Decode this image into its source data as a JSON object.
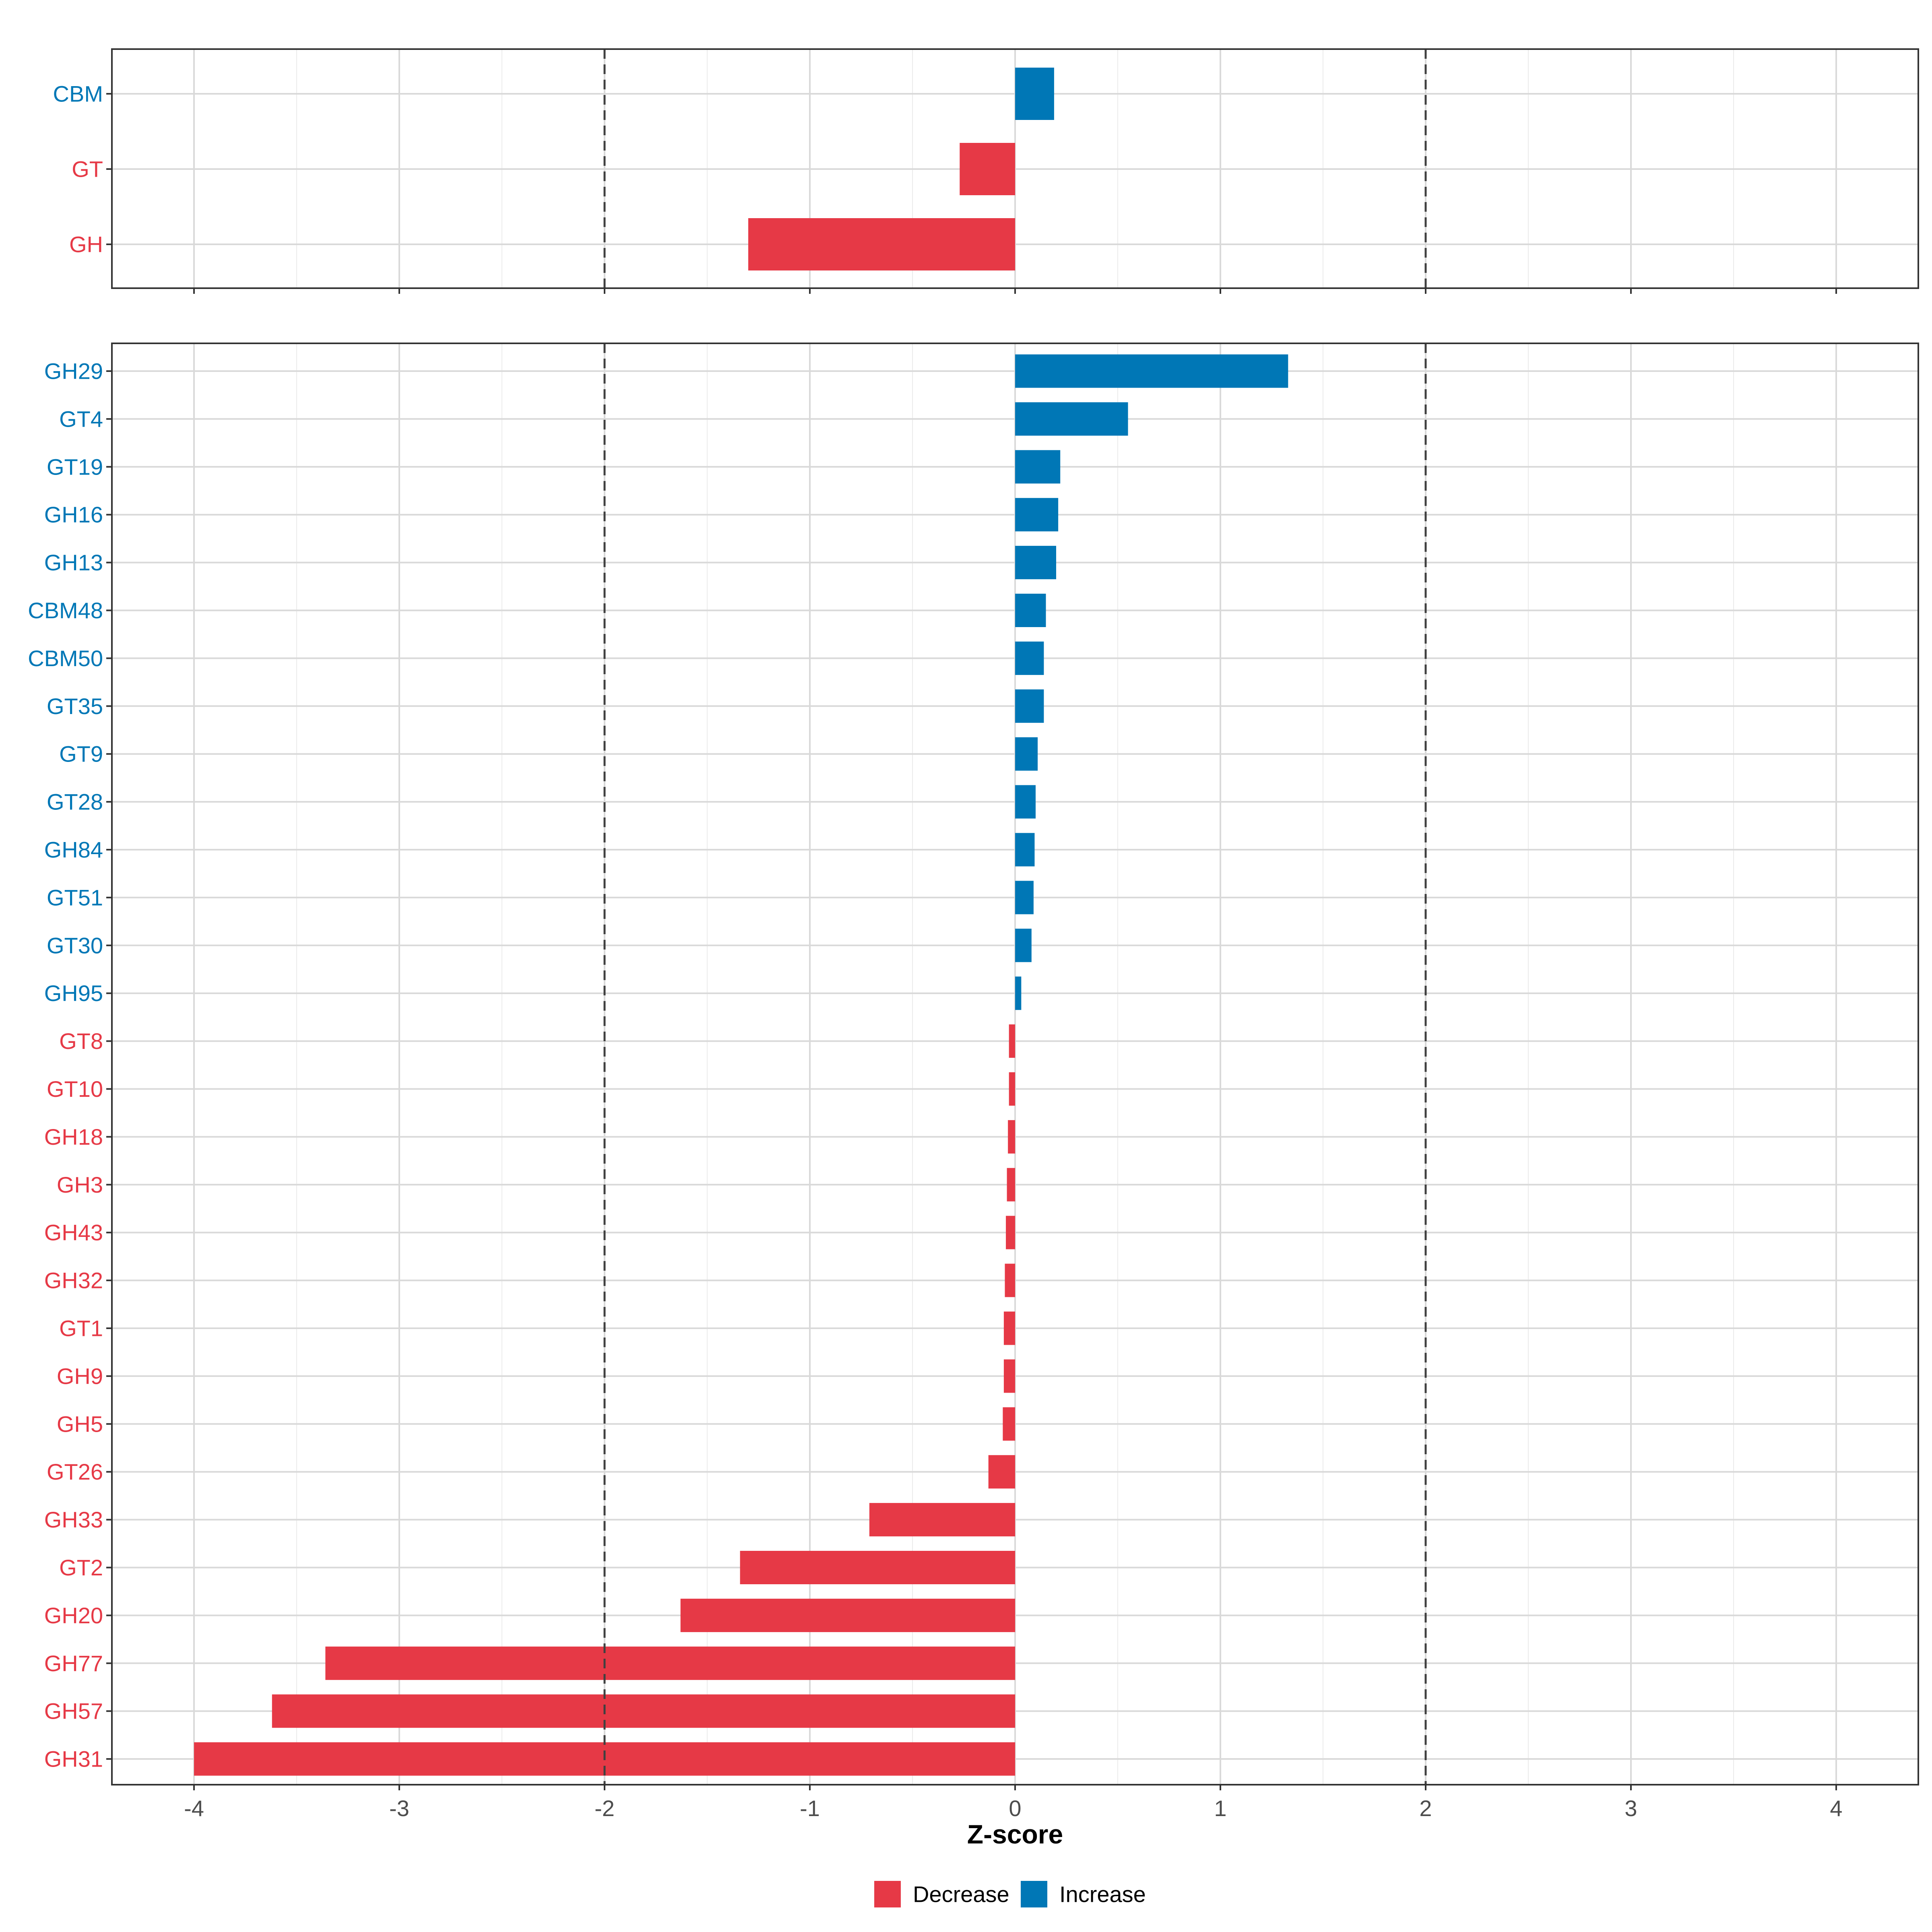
{
  "colors": {
    "decrease": "#E63946",
    "increase": "#0077B6",
    "grid": "#D9D9D9",
    "panel_border": "#333333",
    "reference_line": "#404040"
  },
  "chart_data": [
    {
      "type": "bar",
      "orientation": "horizontal",
      "panel": "top",
      "categories": [
        "CBM",
        "GT",
        "GH"
      ],
      "values": [
        0.19,
        -0.27,
        -1.3
      ],
      "groups": [
        "Increase",
        "Decrease",
        "Decrease"
      ],
      "xlim": [
        -4.4,
        4.4
      ],
      "xticks": [
        -4,
        -3,
        -2,
        -1,
        0,
        1,
        2,
        3,
        4
      ],
      "reference_lines": [
        -2,
        2
      ],
      "grid": true
    },
    {
      "type": "bar",
      "orientation": "horizontal",
      "panel": "bottom",
      "categories": [
        "GH29",
        "GT4",
        "GT19",
        "GH16",
        "GH13",
        "CBM48",
        "CBM50",
        "GT35",
        "GT9",
        "GT28",
        "GH84",
        "GT51",
        "GT30",
        "GH95",
        "GT8",
        "GT10",
        "GH18",
        "GH3",
        "GH43",
        "GH32",
        "GT1",
        "GH9",
        "GH5",
        "GT26",
        "GH33",
        "GT2",
        "GH20",
        "GH77",
        "GH57",
        "GH31"
      ],
      "values": [
        1.33,
        0.55,
        0.22,
        0.21,
        0.2,
        0.15,
        0.14,
        0.14,
        0.11,
        0.1,
        0.095,
        0.09,
        0.08,
        0.03,
        -0.03,
        -0.03,
        -0.035,
        -0.04,
        -0.045,
        -0.05,
        -0.055,
        -0.055,
        -0.06,
        -0.13,
        -0.71,
        -1.34,
        -1.63,
        -3.36,
        -3.62,
        -4.0
      ],
      "groups": [
        "Increase",
        "Increase",
        "Increase",
        "Increase",
        "Increase",
        "Increase",
        "Increase",
        "Increase",
        "Increase",
        "Increase",
        "Increase",
        "Increase",
        "Increase",
        "Increase",
        "Decrease",
        "Decrease",
        "Decrease",
        "Decrease",
        "Decrease",
        "Decrease",
        "Decrease",
        "Decrease",
        "Decrease",
        "Decrease",
        "Decrease",
        "Decrease",
        "Decrease",
        "Decrease",
        "Decrease",
        "Decrease"
      ],
      "xlim": [
        -4.4,
        4.4
      ],
      "xticks": [
        -4,
        -3,
        -2,
        -1,
        0,
        1,
        2,
        3,
        4
      ],
      "reference_lines": [
        -2,
        2
      ],
      "grid": true,
      "xlabel": "Z-score"
    }
  ],
  "legend": {
    "placement": "bottom",
    "items": [
      {
        "label": "Decrease",
        "color": "#E63946"
      },
      {
        "label": "Increase",
        "color": "#0077B6"
      }
    ]
  }
}
